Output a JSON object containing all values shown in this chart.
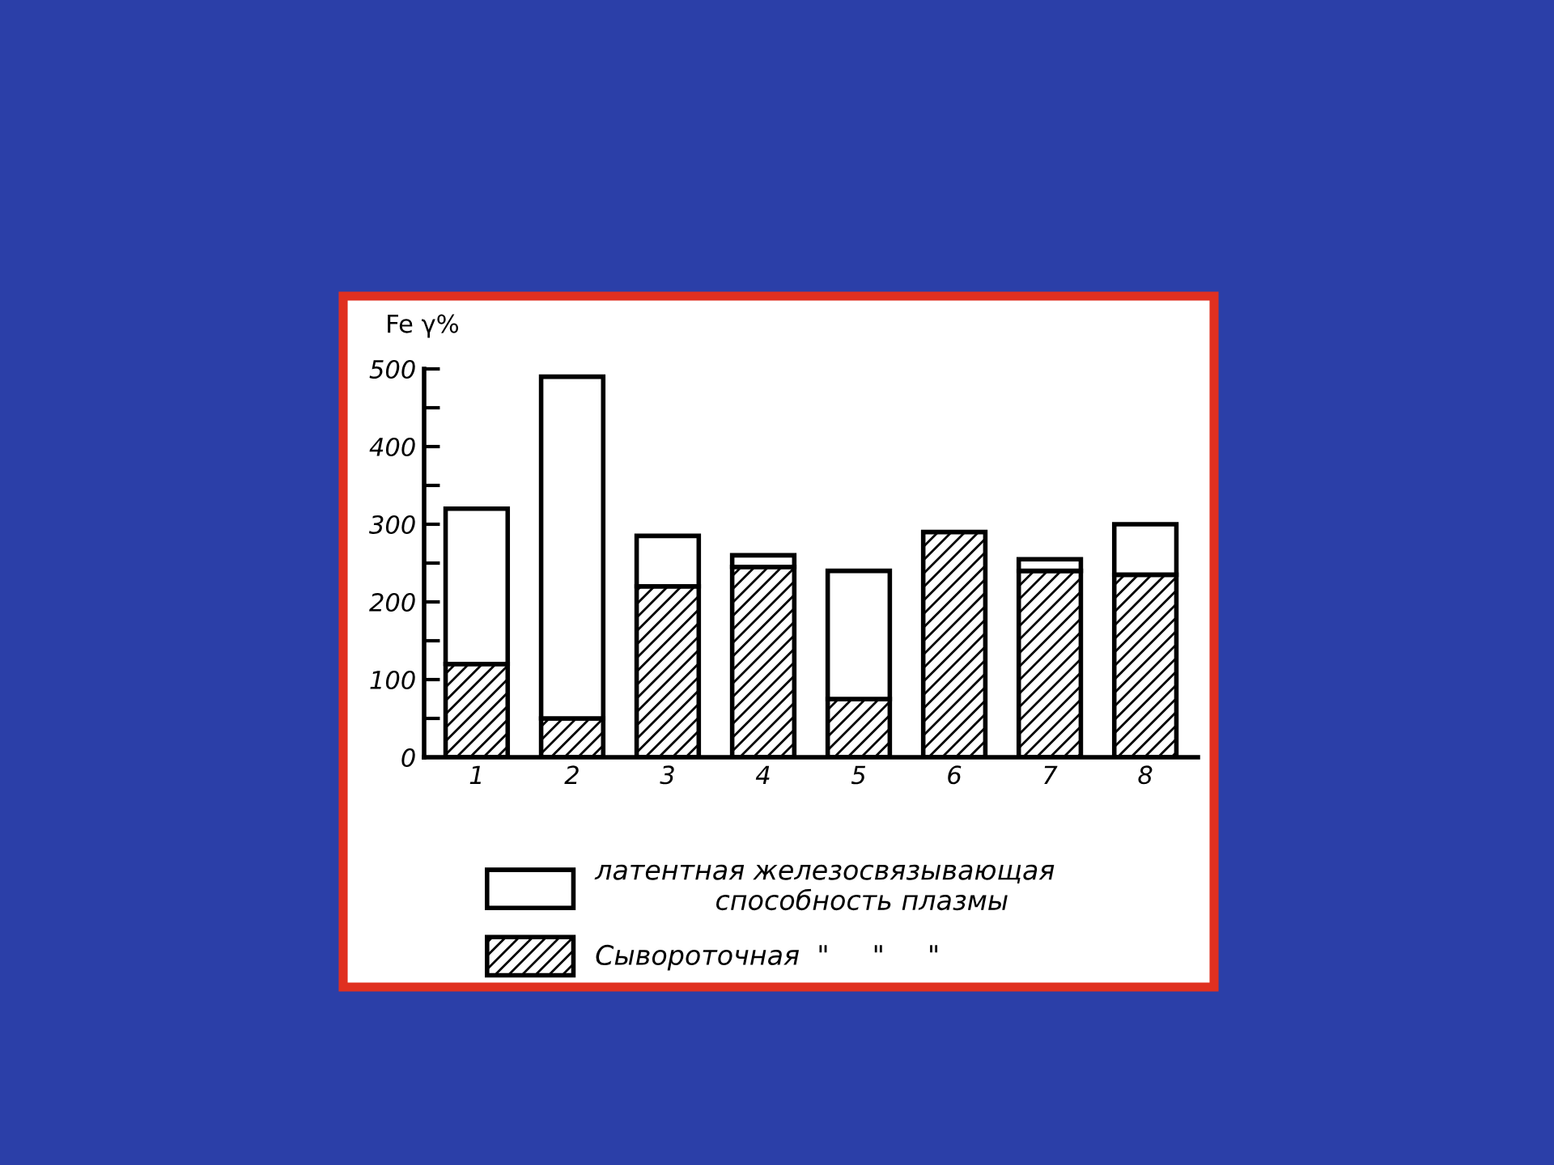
{
  "chart_data": {
    "type": "bar",
    "stacked": true,
    "ylabel": "Fe γ%",
    "categories": [
      "1",
      "2",
      "3",
      "4",
      "5",
      "6",
      "7",
      "8"
    ],
    "series": [
      {
        "name": "Сывороточная  \"     \"     \"",
        "color": "#000000",
        "values": [
          120,
          50,
          220,
          245,
          75,
          290,
          240,
          235
        ]
      },
      {
        "name": "латентная железосвязывающая\n              способность плазмы",
        "color": "#ffffff",
        "values": [
          200,
          440,
          65,
          15,
          165,
          null,
          15,
          65
        ]
      }
    ],
    "ylim": [
      0,
      500
    ],
    "yticks": [
      0,
      {
        "value": 50,
        "label": null
      },
      100,
      {
        "value": 150,
        "label": null
      },
      200,
      {
        "value": 250,
        "label": null
      },
      300,
      {
        "value": 350,
        "label": null
      },
      400,
      {
        "value": 450,
        "label": null
      },
      500
    ],
    "grid": false,
    "legend": "bottom"
  }
}
